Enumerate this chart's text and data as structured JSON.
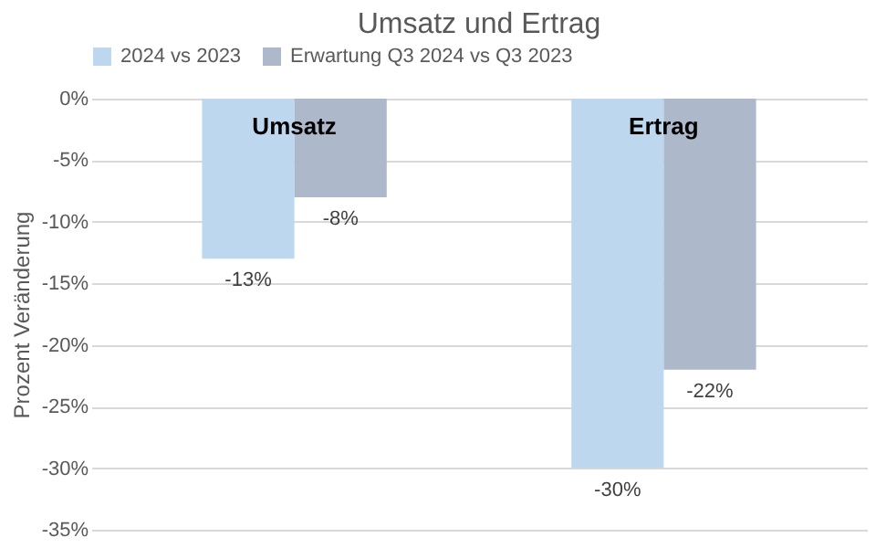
{
  "chart_data": {
    "type": "bar",
    "title": "Umsatz und Ertrag",
    "ylabel": "Prozent Veränderung",
    "categories": [
      "Umsatz",
      "Ertrag"
    ],
    "series": [
      {
        "name": "2024 vs 2023",
        "color": "#bdd7ee",
        "values": [
          -13,
          -30
        ],
        "value_labels": [
          "-13%",
          "-30%"
        ]
      },
      {
        "name": "Erwartung Q3 2024 vs Q3 2023",
        "color": "#adb9ca",
        "values": [
          -8,
          -22
        ],
        "value_labels": [
          "-8%",
          "-22%"
        ]
      }
    ],
    "ylim": [
      -35,
      0
    ],
    "yticks": [
      {
        "value": -35,
        "label": "-35%"
      },
      {
        "value": -30,
        "label": "-30%"
      },
      {
        "value": -25,
        "label": "-25%"
      },
      {
        "value": -20,
        "label": "-20%"
      },
      {
        "value": -15,
        "label": "-15%"
      },
      {
        "value": -10,
        "label": "-10%"
      },
      {
        "value": -5,
        "label": "-5%"
      },
      {
        "value": 0,
        "label": "0%"
      }
    ],
    "grid": "y",
    "legend": "top"
  }
}
